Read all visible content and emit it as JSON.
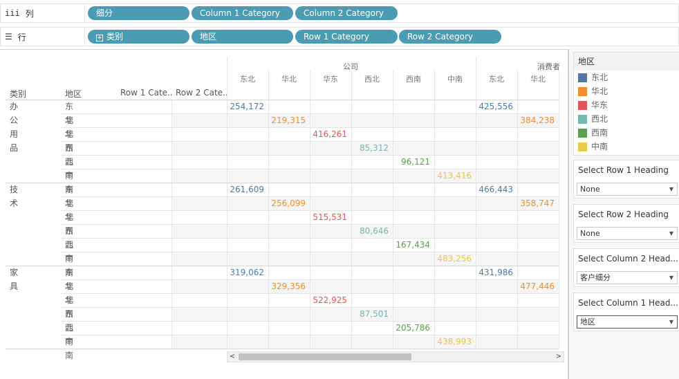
{
  "shelves": {
    "columns": {
      "label": "列",
      "icon": "iii",
      "pills": [
        "细分",
        "Column 1 Category",
        "Column 2 Category"
      ]
    },
    "rows": {
      "label": "行",
      "icon": "☰",
      "pills": [
        "类别",
        "地区",
        "Row 1 Category",
        "Row 2 Category"
      ]
    }
  },
  "table": {
    "row_headers": [
      "类别",
      "地区",
      "Row 1 Cate..",
      "Row 2 Cate.."
    ],
    "segments": [
      "公司",
      "消费者"
    ],
    "regions": [
      "东北",
      "华北",
      "华东",
      "西北",
      "西南",
      "中南"
    ],
    "column_regions": [
      "东北",
      "华北",
      "华东",
      "西北",
      "西南",
      "中南",
      "东北",
      "华北"
    ],
    "categories": [
      {
        "name": "办公用品",
        "rows": [
          {
            "region": "东北",
            "company": "254,172",
            "consumer": "425,556"
          },
          {
            "region": "华北",
            "company": "219,315",
            "consumer": "384,238"
          },
          {
            "region": "华东",
            "company": "416,261",
            "consumer": ""
          },
          {
            "region": "西北",
            "company": "85,312",
            "consumer": ""
          },
          {
            "region": "西南",
            "company": "96,121",
            "consumer": ""
          },
          {
            "region": "中南",
            "company": "413,416",
            "consumer": ""
          }
        ]
      },
      {
        "name": "技术",
        "rows": [
          {
            "region": "东北",
            "company": "261,609",
            "consumer": "466,443"
          },
          {
            "region": "华北",
            "company": "256,099",
            "consumer": "358,747"
          },
          {
            "region": "华东",
            "company": "515,531",
            "consumer": ""
          },
          {
            "region": "西北",
            "company": "80,646",
            "consumer": ""
          },
          {
            "region": "西南",
            "company": "167,434",
            "consumer": ""
          },
          {
            "region": "中南",
            "company": "483,256",
            "consumer": ""
          }
        ]
      },
      {
        "name": "家具",
        "rows": [
          {
            "region": "东北",
            "company": "319,062",
            "consumer": "431,986"
          },
          {
            "region": "华北",
            "company": "329,356",
            "consumer": "477,446"
          },
          {
            "region": "华东",
            "company": "522,925",
            "consumer": ""
          },
          {
            "region": "西北",
            "company": "87,501",
            "consumer": ""
          },
          {
            "region": "西南",
            "company": "205,786",
            "consumer": ""
          },
          {
            "region": "中南",
            "company": "438,993",
            "consumer": ""
          }
        ]
      }
    ]
  },
  "legend": {
    "title": "地区",
    "items": [
      {
        "label": "东北",
        "color": "#4e79a7"
      },
      {
        "label": "华北",
        "color": "#f28e2b"
      },
      {
        "label": "华东",
        "color": "#e15759"
      },
      {
        "label": "西北",
        "color": "#76b7b2"
      },
      {
        "label": "西南",
        "color": "#59a14f"
      },
      {
        "label": "中南",
        "color": "#edc948"
      }
    ]
  },
  "parameters": [
    {
      "title": "Select Row 1 Heading",
      "value": "None"
    },
    {
      "title": "Select Row 2 Heading",
      "value": "None"
    },
    {
      "title": "Select Column 2 Head...",
      "value": "客户细分"
    },
    {
      "title": "Select Column 1 Head...",
      "value": "地区"
    }
  ],
  "scrollbar": {
    "left_arrow": "<",
    "right_arrow": ">"
  }
}
